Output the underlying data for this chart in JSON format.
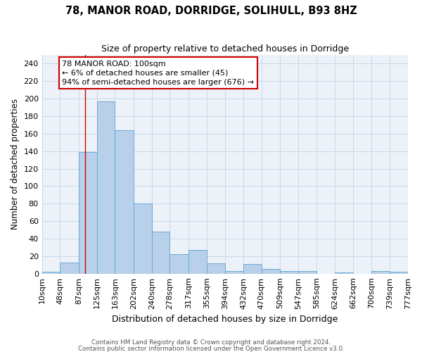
{
  "title": "78, MANOR ROAD, DORRIDGE, SOLIHULL, B93 8HZ",
  "subtitle": "Size of property relative to detached houses in Dorridge",
  "xlabel": "Distribution of detached houses by size in Dorridge",
  "ylabel": "Number of detached properties",
  "footnote1": "Contains HM Land Registry data © Crown copyright and database right 2024.",
  "footnote2": "Contains public sector information licensed under the Open Government Licence v3.0.",
  "bin_labels": [
    "10sqm",
    "48sqm",
    "87sqm",
    "125sqm",
    "163sqm",
    "202sqm",
    "240sqm",
    "278sqm",
    "317sqm",
    "355sqm",
    "394sqm",
    "432sqm",
    "470sqm",
    "509sqm",
    "547sqm",
    "585sqm",
    "624sqm",
    "662sqm",
    "700sqm",
    "739sqm",
    "777sqm"
  ],
  "bin_edges": [
    10,
    48,
    87,
    125,
    163,
    202,
    240,
    278,
    317,
    355,
    394,
    432,
    470,
    509,
    547,
    585,
    624,
    662,
    700,
    739,
    777
  ],
  "bar_values": [
    2,
    13,
    139,
    197,
    164,
    80,
    48,
    22,
    27,
    12,
    3,
    11,
    5,
    3,
    3,
    0,
    1,
    0,
    3,
    2
  ],
  "bar_color": "#b8d0ea",
  "bar_edge_color": "#6aaad4",
  "grid_color": "#c8d8ec",
  "background_color": "#edf2f9",
  "annotation_line1": "78 MANOR ROAD: 100sqm",
  "annotation_line2": "← 6% of detached houses are smaller (45)",
  "annotation_line3": "94% of semi-detached houses are larger (676) →",
  "annotation_box_facecolor": "white",
  "annotation_box_edgecolor": "#cc0000",
  "marker_value": 100,
  "marker_color": "#cc0000",
  "ylim": [
    0,
    250
  ],
  "yticks": [
    0,
    20,
    40,
    60,
    80,
    100,
    120,
    140,
    160,
    180,
    200,
    220,
    240
  ]
}
